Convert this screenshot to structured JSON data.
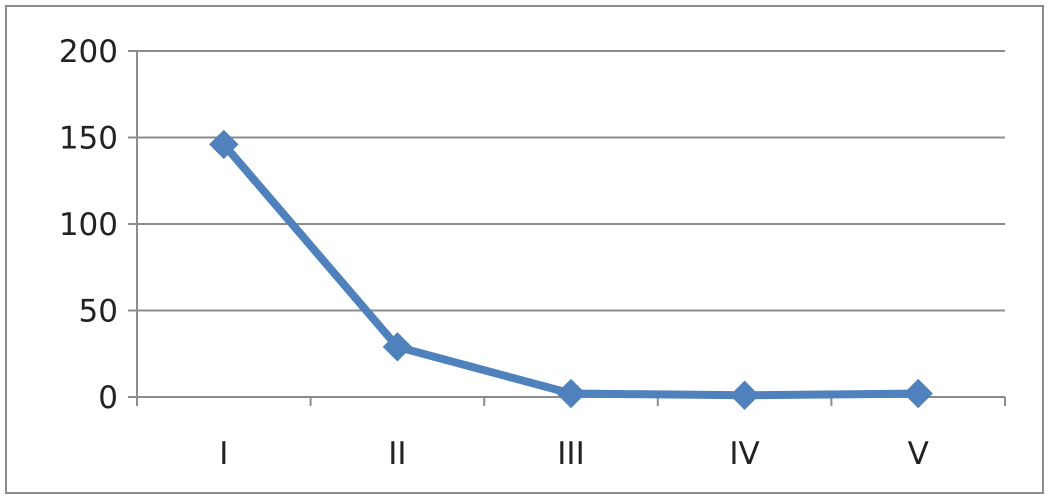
{
  "chart_data": {
    "type": "line",
    "categories": [
      "I",
      "II",
      "III",
      "IV",
      "V"
    ],
    "series": [
      {
        "values": [
          146,
          29,
          2,
          1,
          2
        ],
        "color": "#4f81bd",
        "marker": "diamond"
      }
    ],
    "ylim": [
      0,
      200
    ],
    "yticks": [
      0,
      50,
      100,
      150,
      200
    ],
    "ytick_labels": [
      "0",
      "50",
      "100",
      "150",
      "200"
    ],
    "grid": true,
    "legend": "none",
    "colors": {
      "line": "#4f81bd",
      "grid": "#8c8c8c",
      "axis": "#8c8c8c",
      "text": "#222222"
    }
  }
}
